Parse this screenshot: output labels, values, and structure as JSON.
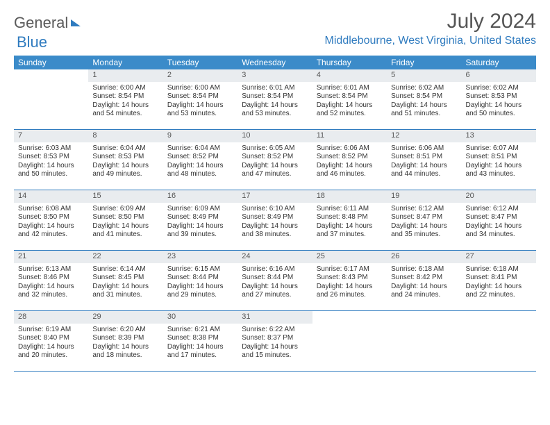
{
  "colors": {
    "header_bg": "#3b8bc9",
    "header_text": "#ffffff",
    "accent": "#2f7bbf",
    "daynum_bg": "#e9ecef",
    "text": "#333333",
    "title_text": "#555555"
  },
  "logo": {
    "part1": "General",
    "part2": "Blue"
  },
  "title": "July 2024",
  "location": "Middlebourne, West Virginia, United States",
  "dayNames": [
    "Sunday",
    "Monday",
    "Tuesday",
    "Wednesday",
    "Thursday",
    "Friday",
    "Saturday"
  ],
  "weeks": [
    [
      {
        "blank": true
      },
      {
        "day": "1",
        "sunrise": "Sunrise: 6:00 AM",
        "sunset": "Sunset: 8:54 PM",
        "daylight1": "Daylight: 14 hours",
        "daylight2": "and 54 minutes."
      },
      {
        "day": "2",
        "sunrise": "Sunrise: 6:00 AM",
        "sunset": "Sunset: 8:54 PM",
        "daylight1": "Daylight: 14 hours",
        "daylight2": "and 53 minutes."
      },
      {
        "day": "3",
        "sunrise": "Sunrise: 6:01 AM",
        "sunset": "Sunset: 8:54 PM",
        "daylight1": "Daylight: 14 hours",
        "daylight2": "and 53 minutes."
      },
      {
        "day": "4",
        "sunrise": "Sunrise: 6:01 AM",
        "sunset": "Sunset: 8:54 PM",
        "daylight1": "Daylight: 14 hours",
        "daylight2": "and 52 minutes."
      },
      {
        "day": "5",
        "sunrise": "Sunrise: 6:02 AM",
        "sunset": "Sunset: 8:54 PM",
        "daylight1": "Daylight: 14 hours",
        "daylight2": "and 51 minutes."
      },
      {
        "day": "6",
        "sunrise": "Sunrise: 6:02 AM",
        "sunset": "Sunset: 8:53 PM",
        "daylight1": "Daylight: 14 hours",
        "daylight2": "and 50 minutes."
      }
    ],
    [
      {
        "day": "7",
        "sunrise": "Sunrise: 6:03 AM",
        "sunset": "Sunset: 8:53 PM",
        "daylight1": "Daylight: 14 hours",
        "daylight2": "and 50 minutes."
      },
      {
        "day": "8",
        "sunrise": "Sunrise: 6:04 AM",
        "sunset": "Sunset: 8:53 PM",
        "daylight1": "Daylight: 14 hours",
        "daylight2": "and 49 minutes."
      },
      {
        "day": "9",
        "sunrise": "Sunrise: 6:04 AM",
        "sunset": "Sunset: 8:52 PM",
        "daylight1": "Daylight: 14 hours",
        "daylight2": "and 48 minutes."
      },
      {
        "day": "10",
        "sunrise": "Sunrise: 6:05 AM",
        "sunset": "Sunset: 8:52 PM",
        "daylight1": "Daylight: 14 hours",
        "daylight2": "and 47 minutes."
      },
      {
        "day": "11",
        "sunrise": "Sunrise: 6:06 AM",
        "sunset": "Sunset: 8:52 PM",
        "daylight1": "Daylight: 14 hours",
        "daylight2": "and 46 minutes."
      },
      {
        "day": "12",
        "sunrise": "Sunrise: 6:06 AM",
        "sunset": "Sunset: 8:51 PM",
        "daylight1": "Daylight: 14 hours",
        "daylight2": "and 44 minutes."
      },
      {
        "day": "13",
        "sunrise": "Sunrise: 6:07 AM",
        "sunset": "Sunset: 8:51 PM",
        "daylight1": "Daylight: 14 hours",
        "daylight2": "and 43 minutes."
      }
    ],
    [
      {
        "day": "14",
        "sunrise": "Sunrise: 6:08 AM",
        "sunset": "Sunset: 8:50 PM",
        "daylight1": "Daylight: 14 hours",
        "daylight2": "and 42 minutes."
      },
      {
        "day": "15",
        "sunrise": "Sunrise: 6:09 AM",
        "sunset": "Sunset: 8:50 PM",
        "daylight1": "Daylight: 14 hours",
        "daylight2": "and 41 minutes."
      },
      {
        "day": "16",
        "sunrise": "Sunrise: 6:09 AM",
        "sunset": "Sunset: 8:49 PM",
        "daylight1": "Daylight: 14 hours",
        "daylight2": "and 39 minutes."
      },
      {
        "day": "17",
        "sunrise": "Sunrise: 6:10 AM",
        "sunset": "Sunset: 8:49 PM",
        "daylight1": "Daylight: 14 hours",
        "daylight2": "and 38 minutes."
      },
      {
        "day": "18",
        "sunrise": "Sunrise: 6:11 AM",
        "sunset": "Sunset: 8:48 PM",
        "daylight1": "Daylight: 14 hours",
        "daylight2": "and 37 minutes."
      },
      {
        "day": "19",
        "sunrise": "Sunrise: 6:12 AM",
        "sunset": "Sunset: 8:47 PM",
        "daylight1": "Daylight: 14 hours",
        "daylight2": "and 35 minutes."
      },
      {
        "day": "20",
        "sunrise": "Sunrise: 6:12 AM",
        "sunset": "Sunset: 8:47 PM",
        "daylight1": "Daylight: 14 hours",
        "daylight2": "and 34 minutes."
      }
    ],
    [
      {
        "day": "21",
        "sunrise": "Sunrise: 6:13 AM",
        "sunset": "Sunset: 8:46 PM",
        "daylight1": "Daylight: 14 hours",
        "daylight2": "and 32 minutes."
      },
      {
        "day": "22",
        "sunrise": "Sunrise: 6:14 AM",
        "sunset": "Sunset: 8:45 PM",
        "daylight1": "Daylight: 14 hours",
        "daylight2": "and 31 minutes."
      },
      {
        "day": "23",
        "sunrise": "Sunrise: 6:15 AM",
        "sunset": "Sunset: 8:44 PM",
        "daylight1": "Daylight: 14 hours",
        "daylight2": "and 29 minutes."
      },
      {
        "day": "24",
        "sunrise": "Sunrise: 6:16 AM",
        "sunset": "Sunset: 8:44 PM",
        "daylight1": "Daylight: 14 hours",
        "daylight2": "and 27 minutes."
      },
      {
        "day": "25",
        "sunrise": "Sunrise: 6:17 AM",
        "sunset": "Sunset: 8:43 PM",
        "daylight1": "Daylight: 14 hours",
        "daylight2": "and 26 minutes."
      },
      {
        "day": "26",
        "sunrise": "Sunrise: 6:18 AM",
        "sunset": "Sunset: 8:42 PM",
        "daylight1": "Daylight: 14 hours",
        "daylight2": "and 24 minutes."
      },
      {
        "day": "27",
        "sunrise": "Sunrise: 6:18 AM",
        "sunset": "Sunset: 8:41 PM",
        "daylight1": "Daylight: 14 hours",
        "daylight2": "and 22 minutes."
      }
    ],
    [
      {
        "day": "28",
        "sunrise": "Sunrise: 6:19 AM",
        "sunset": "Sunset: 8:40 PM",
        "daylight1": "Daylight: 14 hours",
        "daylight2": "and 20 minutes."
      },
      {
        "day": "29",
        "sunrise": "Sunrise: 6:20 AM",
        "sunset": "Sunset: 8:39 PM",
        "daylight1": "Daylight: 14 hours",
        "daylight2": "and 18 minutes."
      },
      {
        "day": "30",
        "sunrise": "Sunrise: 6:21 AM",
        "sunset": "Sunset: 8:38 PM",
        "daylight1": "Daylight: 14 hours",
        "daylight2": "and 17 minutes."
      },
      {
        "day": "31",
        "sunrise": "Sunrise: 6:22 AM",
        "sunset": "Sunset: 8:37 PM",
        "daylight1": "Daylight: 14 hours",
        "daylight2": "and 15 minutes."
      },
      {
        "blank": true
      },
      {
        "blank": true
      },
      {
        "blank": true
      }
    ]
  ]
}
